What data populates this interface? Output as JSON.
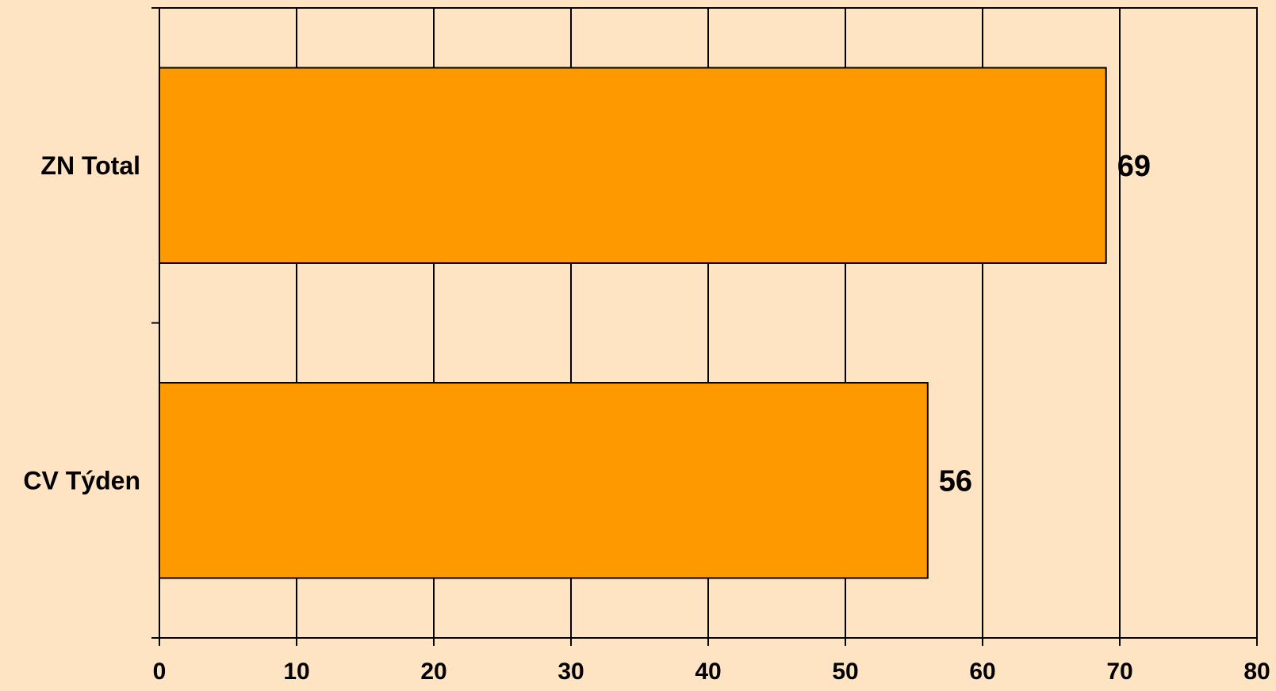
{
  "chart_data": {
    "type": "bar",
    "orientation": "horizontal",
    "categories": [
      "ZN Total",
      "CV Týden"
    ],
    "values": [
      69,
      56
    ],
    "data_labels": [
      "69",
      "56"
    ],
    "xlim": [
      0,
      80
    ],
    "x_ticks": [
      "0",
      "10",
      "20",
      "30",
      "40",
      "50",
      "60",
      "70",
      "80"
    ],
    "grid": true,
    "legend": "none",
    "title": "",
    "xlabel": "",
    "ylabel": ""
  },
  "colors": {
    "background": "#FFE4C4",
    "bar": "#FF9900",
    "grid": "#000000"
  }
}
